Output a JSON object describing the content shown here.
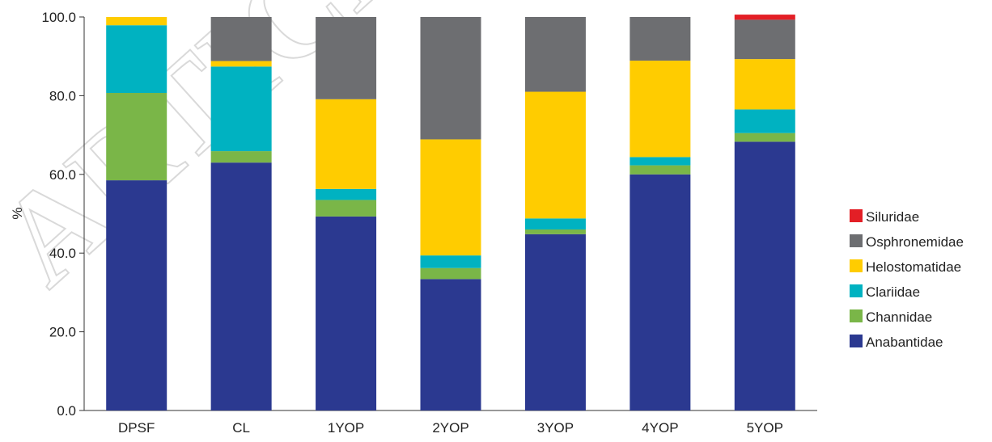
{
  "chart_data": {
    "type": "bar",
    "stacked": true,
    "categories": [
      "DPSF",
      "CL",
      "1YOP",
      "2YOP",
      "3YOP",
      "4YOP",
      "5YOP"
    ],
    "ylabel": "%",
    "xlabel": "",
    "ylim": [
      0,
      100
    ],
    "yticks": [
      "0.0",
      "20.0",
      "40.0",
      "60.0",
      "80.0",
      "100.0"
    ],
    "grid": false,
    "legend_position": "right",
    "series": [
      {
        "name": "Anabantidae",
        "color": "#2b3990",
        "values": [
          58.5,
          63.0,
          49.3,
          33.4,
          44.8,
          60.0,
          68.3
        ]
      },
      {
        "name": "Channidae",
        "color": "#7ab648",
        "values": [
          22.2,
          2.9,
          4.2,
          2.8,
          1.2,
          2.3,
          2.2
        ]
      },
      {
        "name": "Clariidae",
        "color": "#00b2c1",
        "values": [
          17.2,
          21.5,
          2.8,
          3.2,
          2.8,
          2.1,
          6.0
        ]
      },
      {
        "name": "Helostomatidae",
        "color": "#ffcc00",
        "values": [
          2.1,
          1.4,
          22.8,
          29.5,
          32.2,
          24.5,
          12.8
        ]
      },
      {
        "name": "Osphronemidae",
        "color": "#6d6e71",
        "values": [
          0.0,
          11.2,
          20.9,
          31.1,
          19.0,
          11.1,
          10.0
        ]
      },
      {
        "name": "Siluridae",
        "color": "#e31f26",
        "values": [
          0.0,
          0.0,
          0.0,
          0.0,
          0.0,
          0.0,
          1.3
        ]
      }
    ],
    "legend_order": [
      "Siluridae",
      "Osphronemidae",
      "Helostomatidae",
      "Clariidae",
      "Channidae",
      "Anabantidae"
    ]
  }
}
